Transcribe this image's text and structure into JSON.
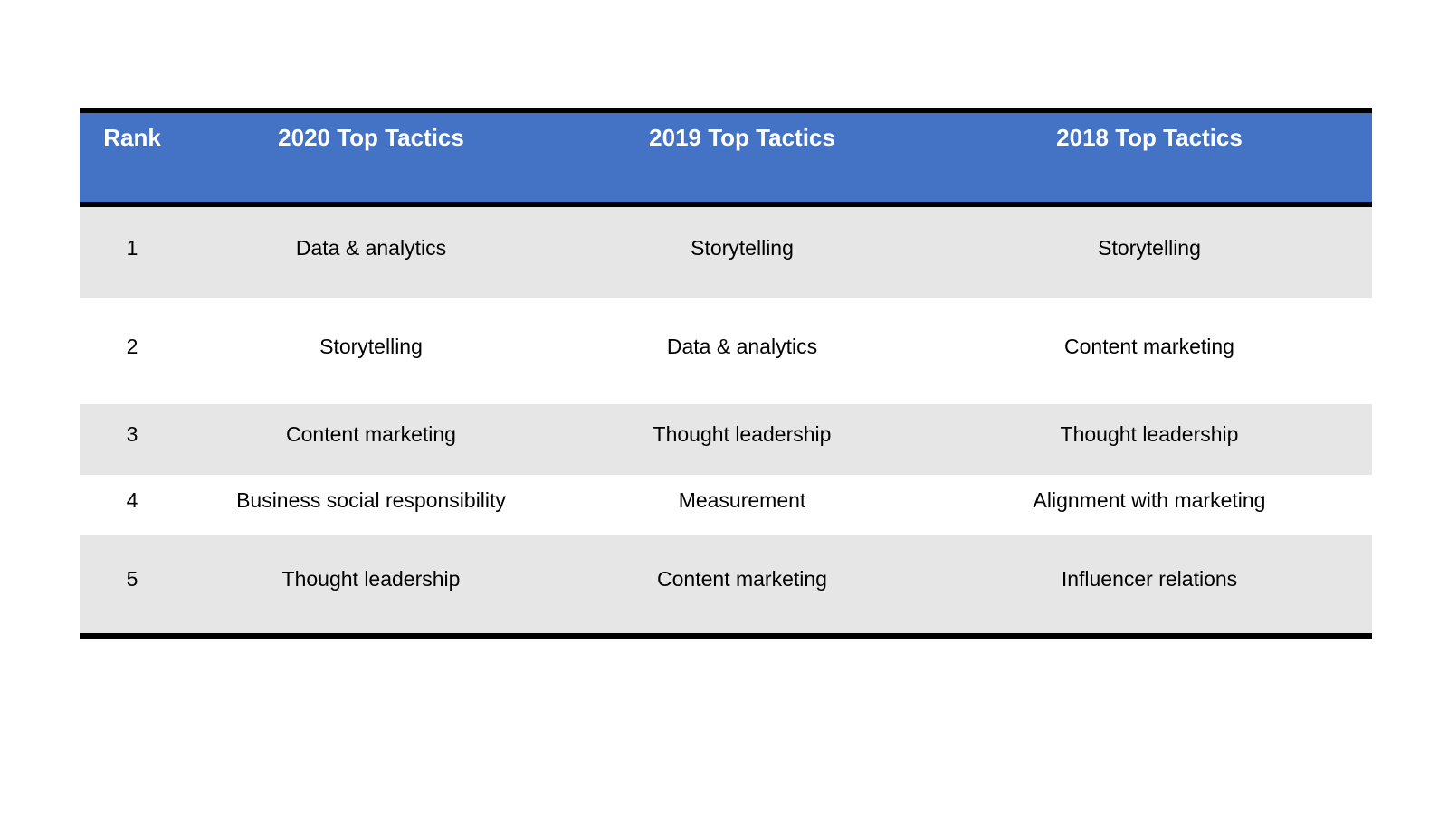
{
  "page": {
    "background": "#FFFFFF"
  },
  "chart_data": {
    "type": "table",
    "columns": [
      "Rank",
      "2020 Top Tactics",
      "2019 Top Tactics",
      "2018 Top Tactics"
    ],
    "rows": [
      [
        "1",
        "Data & analytics",
        "Storytelling",
        "Storytelling"
      ],
      [
        "2",
        "Storytelling",
        "Data & analytics",
        "Content marketing"
      ],
      [
        "3",
        "Content marketing",
        "Thought leadership",
        "Thought leadership"
      ],
      [
        "4",
        "Business social responsibility",
        "Measurement",
        "Alignment with marketing"
      ],
      [
        "5",
        "Thought leadership",
        "Content marketing",
        "Influencer relations"
      ]
    ],
    "layout": {
      "zebra_striping": "odd rows shaded",
      "header_alignment": "top-center",
      "body_alignment": "middle-center"
    },
    "style": {
      "header_bg": "#4472C4",
      "header_text_color": "#FFFFFF",
      "zebra_row_bg": "#E6E6E6",
      "plain_row_bg": "#FFFFFF",
      "body_text_color": "#000000",
      "frame_border_color": "#000000"
    }
  }
}
